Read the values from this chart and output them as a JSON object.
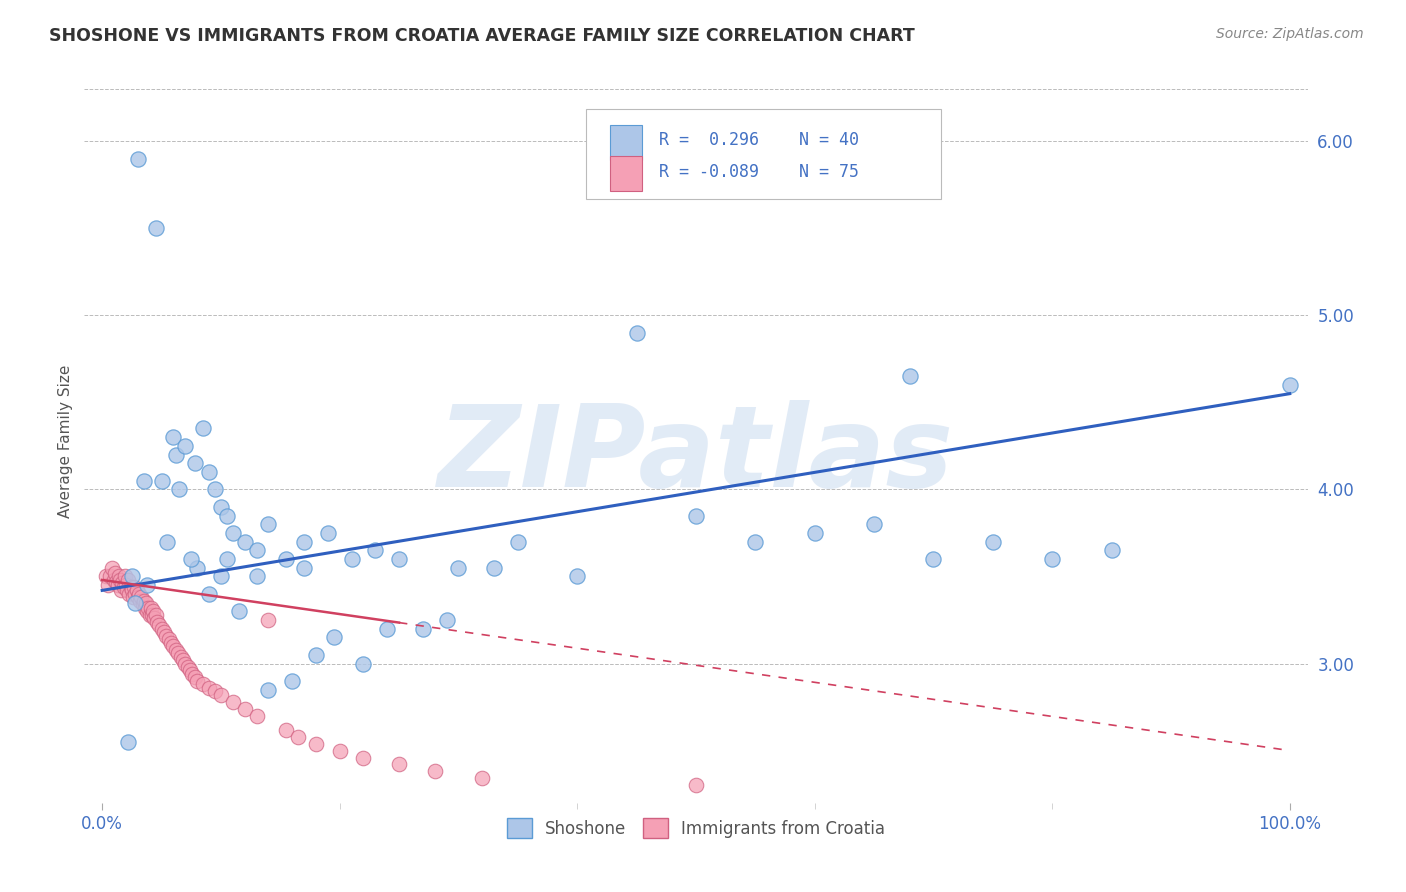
{
  "title": "SHOSHONE VS IMMIGRANTS FROM CROATIA AVERAGE FAMILY SIZE CORRELATION CHART",
  "source_text": "Source: ZipAtlas.com",
  "ylabel": "Average Family Size",
  "watermark": "ZIPatlas",
  "shoshone_color": "#adc6e8",
  "croatia_color": "#f5a0b5",
  "shoshone_line_color": "#2f5fbf",
  "croatia_line_color": "#d04060",
  "shoshone_edge_color": "#5b9bd5",
  "croatia_edge_color": "#d06080",
  "grid_color": "#bbbbbb",
  "background_color": "#ffffff",
  "title_color": "#333333",
  "axis_color": "#4472c4",
  "tick_color": "#4472c4",
  "ymin": 2.2,
  "ymax": 6.35,
  "xmin": -1.5,
  "xmax": 101.5,
  "yticks_right": [
    3.0,
    4.0,
    5.0,
    6.0
  ],
  "shoshone_x": [
    3.0,
    4.5,
    6.0,
    6.2,
    7.0,
    7.8,
    8.5,
    9.0,
    9.5,
    10.0,
    10.5,
    11.0,
    12.0,
    13.0,
    14.0,
    15.5,
    17.0,
    19.0,
    21.0,
    23.0,
    25.0,
    30.0,
    35.0,
    40.0,
    50.0,
    55.0,
    60.0,
    65.0,
    70.0,
    75.0,
    80.0,
    85.0,
    3.5,
    5.0,
    8.0,
    10.0,
    13.0,
    17.0,
    24.0,
    100.0
  ],
  "shoshone_y": [
    5.9,
    5.5,
    4.3,
    4.2,
    4.25,
    4.15,
    4.35,
    4.1,
    4.0,
    3.9,
    3.85,
    3.75,
    3.7,
    3.65,
    3.8,
    3.6,
    3.7,
    3.75,
    3.6,
    3.65,
    3.6,
    3.55,
    3.7,
    3.5,
    3.85,
    3.7,
    3.75,
    3.8,
    3.6,
    3.7,
    3.6,
    3.65,
    4.05,
    4.05,
    3.55,
    3.5,
    3.5,
    3.55,
    3.2,
    4.6
  ],
  "shoshone_x2": [
    2.5,
    3.8,
    6.5,
    10.5,
    16.0,
    18.0,
    22.0,
    27.0,
    45.0,
    68.0,
    5.5,
    7.5,
    2.8,
    14.0,
    33.0,
    2.2,
    9.0,
    11.5,
    19.5,
    29.0
  ],
  "shoshone_y2": [
    3.5,
    3.45,
    4.0,
    3.6,
    2.9,
    3.05,
    3.0,
    3.2,
    4.9,
    4.65,
    3.7,
    3.6,
    3.35,
    2.85,
    3.55,
    2.55,
    3.4,
    3.3,
    3.15,
    3.25
  ],
  "croatia_x": [
    0.3,
    0.5,
    0.7,
    0.8,
    1.0,
    1.1,
    1.2,
    1.3,
    1.4,
    1.5,
    1.6,
    1.7,
    1.8,
    1.9,
    2.0,
    2.1,
    2.2,
    2.3,
    2.4,
    2.5,
    2.6,
    2.7,
    2.8,
    2.9,
    3.0,
    3.1,
    3.2,
    3.3,
    3.4,
    3.5,
    3.6,
    3.7,
    3.8,
    3.9,
    4.0,
    4.1,
    4.2,
    4.3,
    4.4,
    4.5,
    4.6,
    4.8,
    5.0,
    5.2,
    5.4,
    5.6,
    5.8,
    6.0,
    6.2,
    6.4,
    6.6,
    6.8,
    7.0,
    7.2,
    7.4,
    7.6,
    7.8,
    8.0,
    8.5,
    9.0,
    9.5,
    10.0,
    11.0,
    12.0,
    13.0,
    14.0,
    15.5,
    16.5,
    18.0,
    20.0,
    22.0,
    25.0,
    28.0,
    32.0,
    50.0
  ],
  "croatia_y": [
    3.5,
    3.45,
    3.5,
    3.55,
    3.48,
    3.52,
    3.47,
    3.45,
    3.5,
    3.48,
    3.42,
    3.46,
    3.44,
    3.5,
    3.45,
    3.42,
    3.48,
    3.4,
    3.44,
    3.42,
    3.38,
    3.44,
    3.4,
    3.42,
    3.38,
    3.4,
    3.36,
    3.38,
    3.34,
    3.36,
    3.32,
    3.35,
    3.3,
    3.32,
    3.28,
    3.32,
    3.28,
    3.3,
    3.26,
    3.28,
    3.24,
    3.22,
    3.2,
    3.18,
    3.16,
    3.14,
    3.12,
    3.1,
    3.08,
    3.06,
    3.04,
    3.02,
    3.0,
    2.98,
    2.96,
    2.94,
    2.92,
    2.9,
    2.88,
    2.86,
    2.84,
    2.82,
    2.78,
    2.74,
    2.7,
    3.25,
    2.62,
    2.58,
    2.54,
    2.5,
    2.46,
    2.42,
    2.38,
    2.34,
    2.3
  ],
  "shoshone_trendline": [
    0.0,
    100.0,
    3.42,
    4.55
  ],
  "croatia_trendline": [
    0.0,
    100.0,
    3.48,
    2.5
  ]
}
